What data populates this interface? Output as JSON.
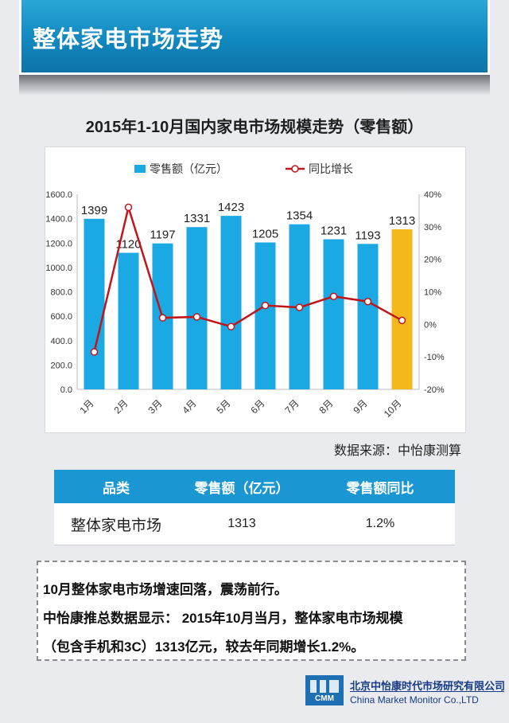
{
  "header": {
    "title": "整体家电市场走势"
  },
  "chart_data": {
    "type": "bar",
    "title": "2015年1-10月国内家电市场规模走势（零售额）",
    "categories": [
      "1月",
      "2月",
      "3月",
      "4月",
      "5月",
      "6月",
      "7月",
      "8月",
      "9月",
      "10月"
    ],
    "series": [
      {
        "name": "零售额（亿元）",
        "type": "bar",
        "axis": "left",
        "values": [
          1399,
          1120,
          1197,
          1331,
          1423,
          1205,
          1354,
          1231,
          1193,
          1313
        ],
        "color": "#1aa9e3",
        "highlight_color": "#f5b81c",
        "highlight_index": 9
      },
      {
        "name": "同比增长",
        "type": "line",
        "axis": "right",
        "values": [
          -8.5,
          36,
          2,
          2.3,
          -0.7,
          5.8,
          5.2,
          8.6,
          7,
          1.2
        ],
        "color": "#c0151b"
      }
    ],
    "y_left": {
      "min": 0,
      "max": 1600,
      "ticks": [
        "0.0",
        "200.0",
        "400.0",
        "600.0",
        "800.0",
        "1000.0",
        "1200.0",
        "1400.0",
        "1600.0"
      ]
    },
    "y_right": {
      "min": -20,
      "max": 40,
      "ticks": [
        "-20%",
        "-10%",
        "0%",
        "10%",
        "20%",
        "30%",
        "40%"
      ]
    },
    "legend_position": "top",
    "grid": false
  },
  "source": "数据来源：中怡康测算",
  "table": {
    "headers": [
      "品类",
      "零售额（亿元）",
      "零售额同比"
    ],
    "rows": [
      [
        "整体家电市场",
        "1313",
        "1.2%"
      ]
    ]
  },
  "note": {
    "line1": "10月整体家电市场增速回落，震荡前行。",
    "line2": "中怡康推总数据显示： 2015年10月当月，整体家电市场规模",
    "line3": "（包含手机和3C）1313亿元，较去年同期增长1.2%。"
  },
  "footer": {
    "logo_text": "CMM",
    "company_cn": "北京中怡康时代市场研究有限公司",
    "company_en": "China Market Monitor Co.,LTD"
  }
}
